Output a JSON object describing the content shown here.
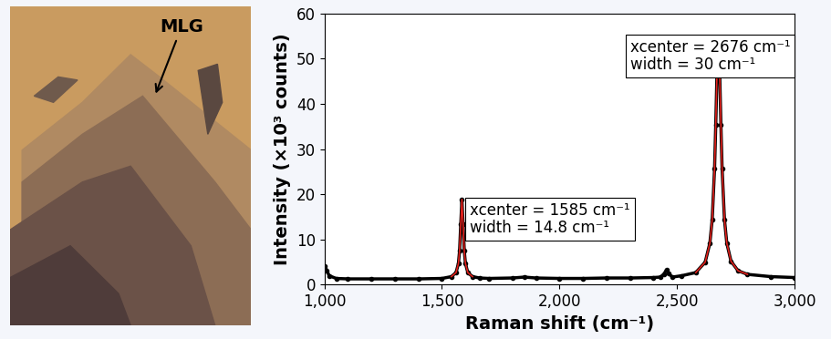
{
  "image": {
    "label": "MLG"
  },
  "chart_data": {
    "type": "scatter",
    "x_label": "Raman shift (cm⁻¹)",
    "y_label": "Intensity (×10³ counts)",
    "annotations": [
      "xcenter = 1585 cm⁻¹\nwidth = 14.8 cm⁻¹",
      "xcenter = 2676 cm⁻¹\nwidth = 30 cm⁻¹"
    ],
    "x": [
      1000,
      1010,
      1020,
      1050,
      1100,
      1200,
      1300,
      1400,
      1500,
      1540,
      1560,
      1570,
      1575,
      1580,
      1585,
      1590,
      1595,
      1600,
      1610,
      1630,
      1660,
      1700,
      1800,
      1850,
      1900,
      2000,
      2100,
      2200,
      2300,
      2400,
      2430,
      2445,
      2455,
      2465,
      2480,
      2520,
      2580,
      2620,
      2640,
      2650,
      2660,
      2665,
      2670,
      2676,
      2682,
      2687,
      2692,
      2702,
      2712,
      2730,
      2760,
      2800,
      2900,
      3000
    ],
    "series": [
      {
        "color": "#000000",
        "marker": "o",
        "line_style": "solid",
        "values": [
          4.2,
          3.2,
          2.0,
          1.4,
          1.3,
          1.3,
          1.3,
          1.3,
          1.4,
          1.8,
          2.7,
          4.7,
          7.5,
          13.4,
          18.9,
          13.4,
          7.5,
          4.7,
          2.7,
          1.8,
          1.5,
          1.4,
          1.5,
          1.7,
          1.5,
          1.4,
          1.4,
          1.5,
          1.5,
          1.6,
          1.7,
          2.4,
          3.3,
          2.5,
          1.7,
          2.0,
          2.7,
          5.0,
          9.2,
          14.5,
          25.8,
          35.3,
          46.3,
          53.5,
          46.3,
          35.3,
          25.8,
          14.5,
          9.2,
          5.2,
          3.1,
          2.3,
          1.8,
          1.6
        ]
      },
      {
        "color": "#e0201b",
        "line_style": "solid",
        "values": [
          null,
          null,
          null,
          null,
          null,
          null,
          null,
          null,
          null,
          1.8,
          2.7,
          4.7,
          7.5,
          13.4,
          18.9,
          13.4,
          7.5,
          4.7,
          2.7,
          1.8,
          null,
          null,
          null,
          null,
          null,
          null,
          null,
          null,
          null,
          null,
          null,
          null,
          null,
          null,
          null,
          null,
          2.7,
          5.0,
          9.2,
          14.5,
          25.8,
          35.3,
          46.3,
          53.5,
          46.3,
          35.3,
          25.8,
          14.5,
          9.2,
          5.2,
          3.1,
          2.3,
          null,
          null
        ]
      }
    ],
    "xlim": [
      1000,
      3000
    ],
    "xticks": [
      {
        "value": 1000,
        "label": "1,000"
      },
      {
        "value": 1500,
        "label": "1,500"
      },
      {
        "value": 2000,
        "label": "2,000"
      },
      {
        "value": 2500,
        "label": "2,500"
      },
      {
        "value": 3000,
        "label": "3,000"
      }
    ],
    "ylim": [
      0,
      60
    ],
    "yticks": [
      0,
      10,
      20,
      30,
      40,
      50,
      60
    ]
  }
}
